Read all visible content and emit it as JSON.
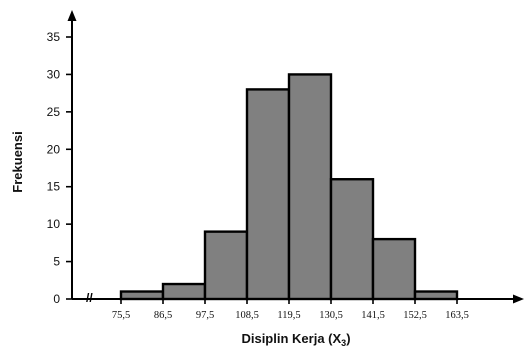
{
  "chart_data": {
    "type": "bar",
    "subtype": "histogram",
    "bin_edges": [
      "75,5",
      "86,5",
      "97,5",
      "108,5",
      "119,5",
      "130,5",
      "141,5",
      "152,5",
      "163,5"
    ],
    "bins": [
      {
        "from": 75.5,
        "to": 86.5,
        "value": 1
      },
      {
        "from": 86.5,
        "to": 97.5,
        "value": 2
      },
      {
        "from": 97.5,
        "to": 108.5,
        "value": 9
      },
      {
        "from": 108.5,
        "to": 119.5,
        "value": 28
      },
      {
        "from": 119.5,
        "to": 130.5,
        "value": 30
      },
      {
        "from": 130.5,
        "to": 141.5,
        "value": 16
      },
      {
        "from": 141.5,
        "to": 152.5,
        "value": 8
      },
      {
        "from": 152.5,
        "to": 163.5,
        "value": 1
      }
    ],
    "ylabel": "Frekuensi",
    "xlabel": {
      "text": "Disiplin Kerja (X",
      "subscript": "3",
      "suffix": ")"
    },
    "yticks": [
      0,
      5,
      10,
      15,
      20,
      25,
      30,
      35
    ],
    "ylim": [
      0,
      35
    ],
    "axis_break_symbol": "//",
    "grid": false,
    "bar_color": "#808080",
    "edge_color": "#000000"
  }
}
